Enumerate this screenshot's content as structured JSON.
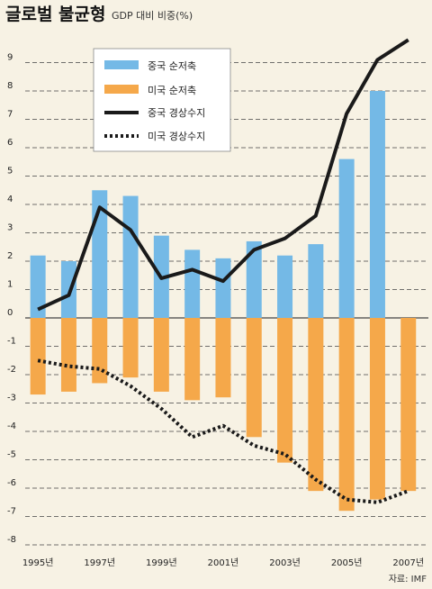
{
  "title": "글로벌 불균형",
  "subtitle": "GDP 대비 비중(%)",
  "source": "자료: IMF",
  "colors": {
    "china_savings": "#74b9e6",
    "us_savings": "#f5a84a",
    "china_current": "#1a1a1a",
    "us_current": "#1a1a1a",
    "grid": "#444444",
    "background": "#f7f2e4"
  },
  "chart_data": {
    "type": "bar",
    "title": "글로벌 불균형",
    "subtitle": "GDP 대비 비중(%)",
    "ylim": [
      -8,
      10
    ],
    "yticks": [
      9,
      8,
      7,
      6,
      5,
      4,
      3,
      2,
      1,
      0,
      -1,
      -2,
      -3,
      -4,
      -5,
      -6,
      -7,
      -8
    ],
    "grid": true,
    "legend_position": "top-left",
    "categories": [
      "1995",
      "1996",
      "1997",
      "1998",
      "1999",
      "2000",
      "2001",
      "2002",
      "2003",
      "2004",
      "2005",
      "2006",
      "2007"
    ],
    "x_tick_labels": [
      {
        "index": 0,
        "label": "1995년"
      },
      {
        "index": 2,
        "label": "1997년"
      },
      {
        "index": 4,
        "label": "1999년"
      },
      {
        "index": 6,
        "label": "2001년"
      },
      {
        "index": 8,
        "label": "2003년"
      },
      {
        "index": 10,
        "label": "2005년"
      },
      {
        "index": 12,
        "label": "2007년"
      }
    ],
    "series": [
      {
        "name": "중국 순저축",
        "kind": "bar",
        "values": [
          2.2,
          2.0,
          4.5,
          4.3,
          2.9,
          2.4,
          2.1,
          2.7,
          2.2,
          2.6,
          5.6,
          8.0,
          null
        ]
      },
      {
        "name": "미국 순저축",
        "kind": "bar",
        "values": [
          -2.7,
          -2.6,
          -2.3,
          -2.1,
          -2.6,
          -2.9,
          -2.8,
          -4.2,
          -5.1,
          -6.1,
          -6.8,
          -6.4,
          -6.1
        ]
      },
      {
        "name": "중국 경상수지",
        "kind": "line",
        "style": "solid",
        "values": [
          0.3,
          0.8,
          3.9,
          3.1,
          1.4,
          1.7,
          1.3,
          2.4,
          2.8,
          3.6,
          7.2,
          9.1,
          9.8
        ]
      },
      {
        "name": "미국 경상수지",
        "kind": "line",
        "style": "dotted",
        "values": [
          -1.5,
          -1.7,
          -1.8,
          -2.4,
          -3.2,
          -4.2,
          -3.8,
          -4.5,
          -4.8,
          -5.7,
          -6.4,
          -6.5,
          -6.1
        ]
      }
    ]
  }
}
